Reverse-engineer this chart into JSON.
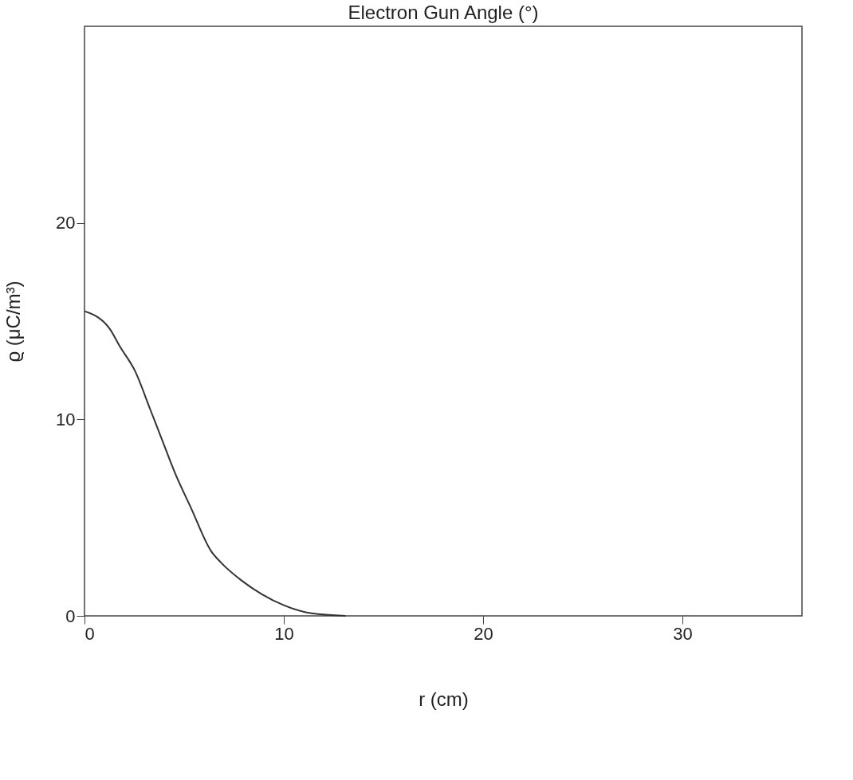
{
  "chart_data": {
    "type": "line",
    "title": "Electron Gun Angle (°)",
    "xlabel": "r (cm)",
    "ylabel": "ϱ (μC/m³)",
    "x": [
      0,
      1.27,
      1.78,
      2.54,
      3.3,
      3.8,
      4.57,
      5.34,
      6.35,
      6.86,
      7.88,
      8.9,
      10,
      11.4,
      13.1
    ],
    "series": [
      {
        "color": "#333333",
        "values": [
          15.5,
          14.6,
          13.7,
          12.45,
          10.5,
          9.2,
          7.2,
          5.5,
          3.3,
          2.7,
          1.8,
          1.1,
          0.54,
          0.13,
          0
        ]
      }
    ],
    "xlim": [
      0,
      36
    ],
    "ylim": [
      0,
      30
    ],
    "xticks": [
      0,
      10,
      20,
      30
    ],
    "yticks": [
      0,
      10,
      20
    ],
    "grid": false,
    "marker": "none",
    "line_style": "solid"
  }
}
